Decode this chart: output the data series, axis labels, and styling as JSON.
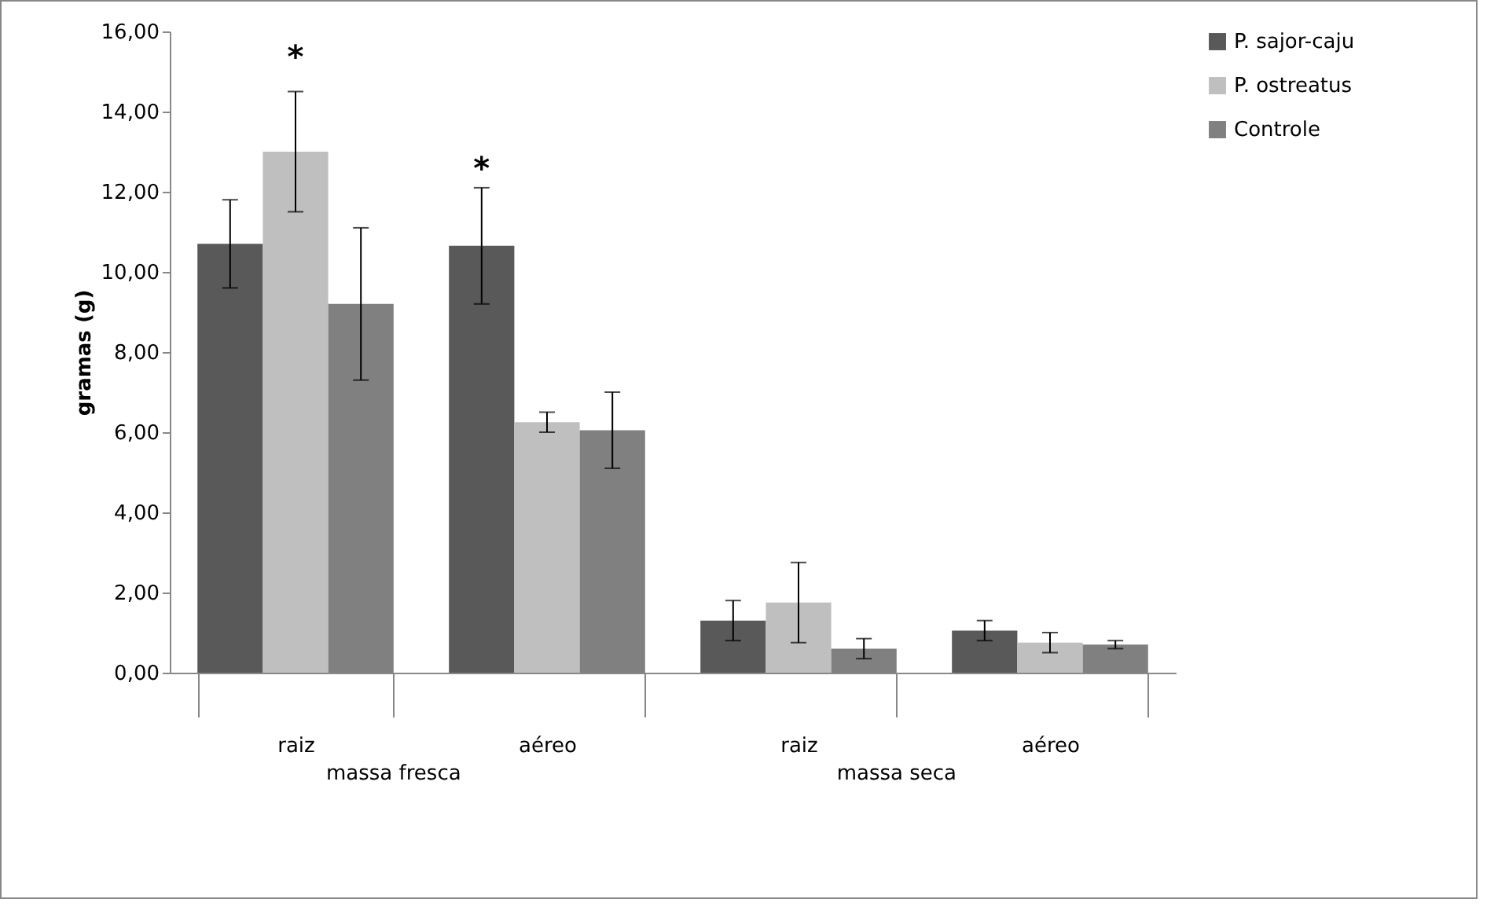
{
  "chart_data": {
    "type": "bar",
    "ylabel": "gramas (g)",
    "categories": [
      "raiz",
      "aéreo",
      "raiz",
      "aéreo"
    ],
    "series": [
      {
        "name": "P. sajor-caju",
        "color": "#595959",
        "values": [
          10.7,
          10.65,
          1.3,
          1.05
        ],
        "errors": [
          1.1,
          1.45,
          0.5,
          0.25
        ]
      },
      {
        "name": "P. ostreatus",
        "color": "#bfbfbf",
        "values": [
          13.0,
          6.25,
          1.75,
          0.75
        ],
        "errors": [
          1.5,
          0.25,
          1.0,
          0.25
        ]
      },
      {
        "name": "Controle",
        "color": "#808080",
        "values": [
          9.2,
          6.05,
          0.6,
          0.7
        ],
        "errors": [
          1.9,
          0.95,
          0.25,
          0.1
        ]
      }
    ],
    "ylim": [
      0,
      16
    ],
    "yticks": [
      {
        "value": 0,
        "label": "0,00"
      },
      {
        "value": 2,
        "label": "2,00"
      },
      {
        "value": 4,
        "label": "4,00"
      },
      {
        "value": 6,
        "label": "6,00"
      },
      {
        "value": 8,
        "label": "8,00"
      },
      {
        "value": 10,
        "label": "10,00"
      },
      {
        "value": 12,
        "label": "12,00"
      },
      {
        "value": 14,
        "label": "14,00"
      },
      {
        "value": 16,
        "label": "16,00"
      }
    ],
    "annotations": [
      "*",
      "*",
      "massa fresca",
      "massa seca"
    ],
    "legend": "right"
  }
}
